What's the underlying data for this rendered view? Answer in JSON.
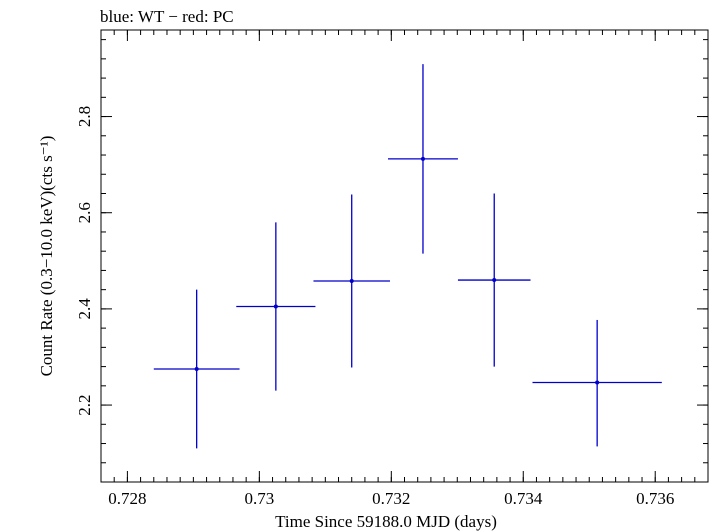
{
  "chart_data": {
    "type": "scatter",
    "title": "blue: WT − red: PC",
    "xlabel": "Time Since 59188.0 MJD (days)",
    "ylabel": "Count Rate (0.3−10.0 keV)(cts s⁻¹)",
    "xlim": [
      0.7276,
      0.7368
    ],
    "ylim": [
      2.04,
      2.98
    ],
    "x_ticks": [
      0.728,
      0.73,
      0.732,
      0.734,
      0.736
    ],
    "x_tick_labels": [
      "0.728",
      "0.73",
      "0.732",
      "0.734",
      "0.736"
    ],
    "y_ticks": [
      2.2,
      2.4,
      2.6,
      2.8
    ],
    "y_tick_labels": [
      "2.2",
      "2.4",
      "2.6",
      "2.8"
    ],
    "grid": false,
    "series": [
      {
        "name": "WT",
        "color": "#0000cc",
        "points": [
          {
            "x": 0.72905,
            "xerr": 0.00065,
            "y": 2.275,
            "yerr_low": 0.165,
            "yerr_high": 0.165
          },
          {
            "x": 0.73025,
            "xerr": 0.0006,
            "y": 2.405,
            "yerr_low": 0.175,
            "yerr_high": 0.175
          },
          {
            "x": 0.7314,
            "xerr": 0.00058,
            "y": 2.458,
            "yerr_low": 0.18,
            "yerr_high": 0.18
          },
          {
            "x": 0.73248,
            "xerr": 0.00053,
            "y": 2.712,
            "yerr_low": 0.197,
            "yerr_high": 0.197
          },
          {
            "x": 0.73356,
            "xerr": 0.00055,
            "y": 2.46,
            "yerr_low": 0.18,
            "yerr_high": 0.18
          },
          {
            "x": 0.73512,
            "xerr": 0.00098,
            "y": 2.247,
            "yerr_low": 0.133,
            "yerr_high": 0.13
          }
        ]
      }
    ]
  }
}
